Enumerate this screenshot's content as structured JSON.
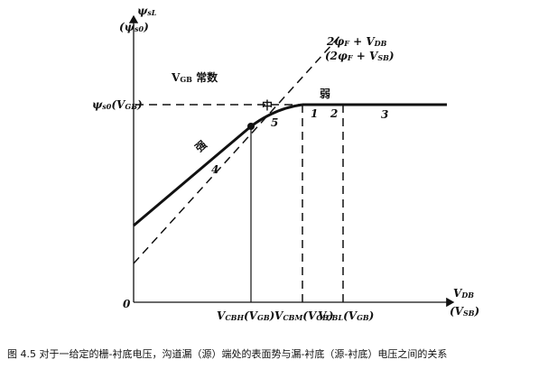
{
  "labels": {
    "y_axis": [
      "ψ",
      {
        "sub": "sL"
      }
    ],
    "y_axis_alt": [
      "(ψ",
      {
        "sub": "s0"
      },
      ")"
    ],
    "origin": [
      "0"
    ],
    "constant": [
      "V",
      {
        "sub": "GB"
      },
      " 常数"
    ],
    "level": [
      "ψ",
      {
        "sub": "s0"
      },
      "(V",
      {
        "sub": "GB"
      },
      ")"
    ],
    "line_label": [
      "2φ",
      {
        "sub": "F"
      },
      " + V",
      {
        "sub": "DB"
      }
    ],
    "line_label_alt": [
      "(2φ",
      {
        "sub": "F"
      },
      " + V",
      {
        "sub": "SB"
      },
      ")"
    ],
    "moderate": [
      "中"
    ],
    "weak": [
      "弱"
    ],
    "strong": [
      "强"
    ],
    "p1": [
      "1"
    ],
    "p2": [
      "2"
    ],
    "p3": [
      "3"
    ],
    "p4": [
      "4"
    ],
    "p5": [
      "5"
    ],
    "x_axis": [
      "V",
      {
        "sub": "DB"
      }
    ],
    "x_axis_alt": [
      "(V",
      {
        "sub": "SB"
      },
      ")"
    ],
    "vcbh": [
      "V",
      {
        "sub": "CBH"
      },
      "(V",
      {
        "sub": "GB"
      },
      ")"
    ],
    "vcbm": [
      "V",
      {
        "sub": "CBM"
      },
      "(V",
      {
        "sub": "GB"
      },
      ")"
    ],
    "vcbl": [
      "V",
      {
        "sub": "CBL"
      },
      "(V",
      {
        "sub": "GB"
      },
      ")"
    ]
  },
  "caption": "图 4.5  对于一给定的栅-衬底电压，沟道漏（源）端处的表面势与漏-衬底（源-衬底）电压之间的关系"
}
